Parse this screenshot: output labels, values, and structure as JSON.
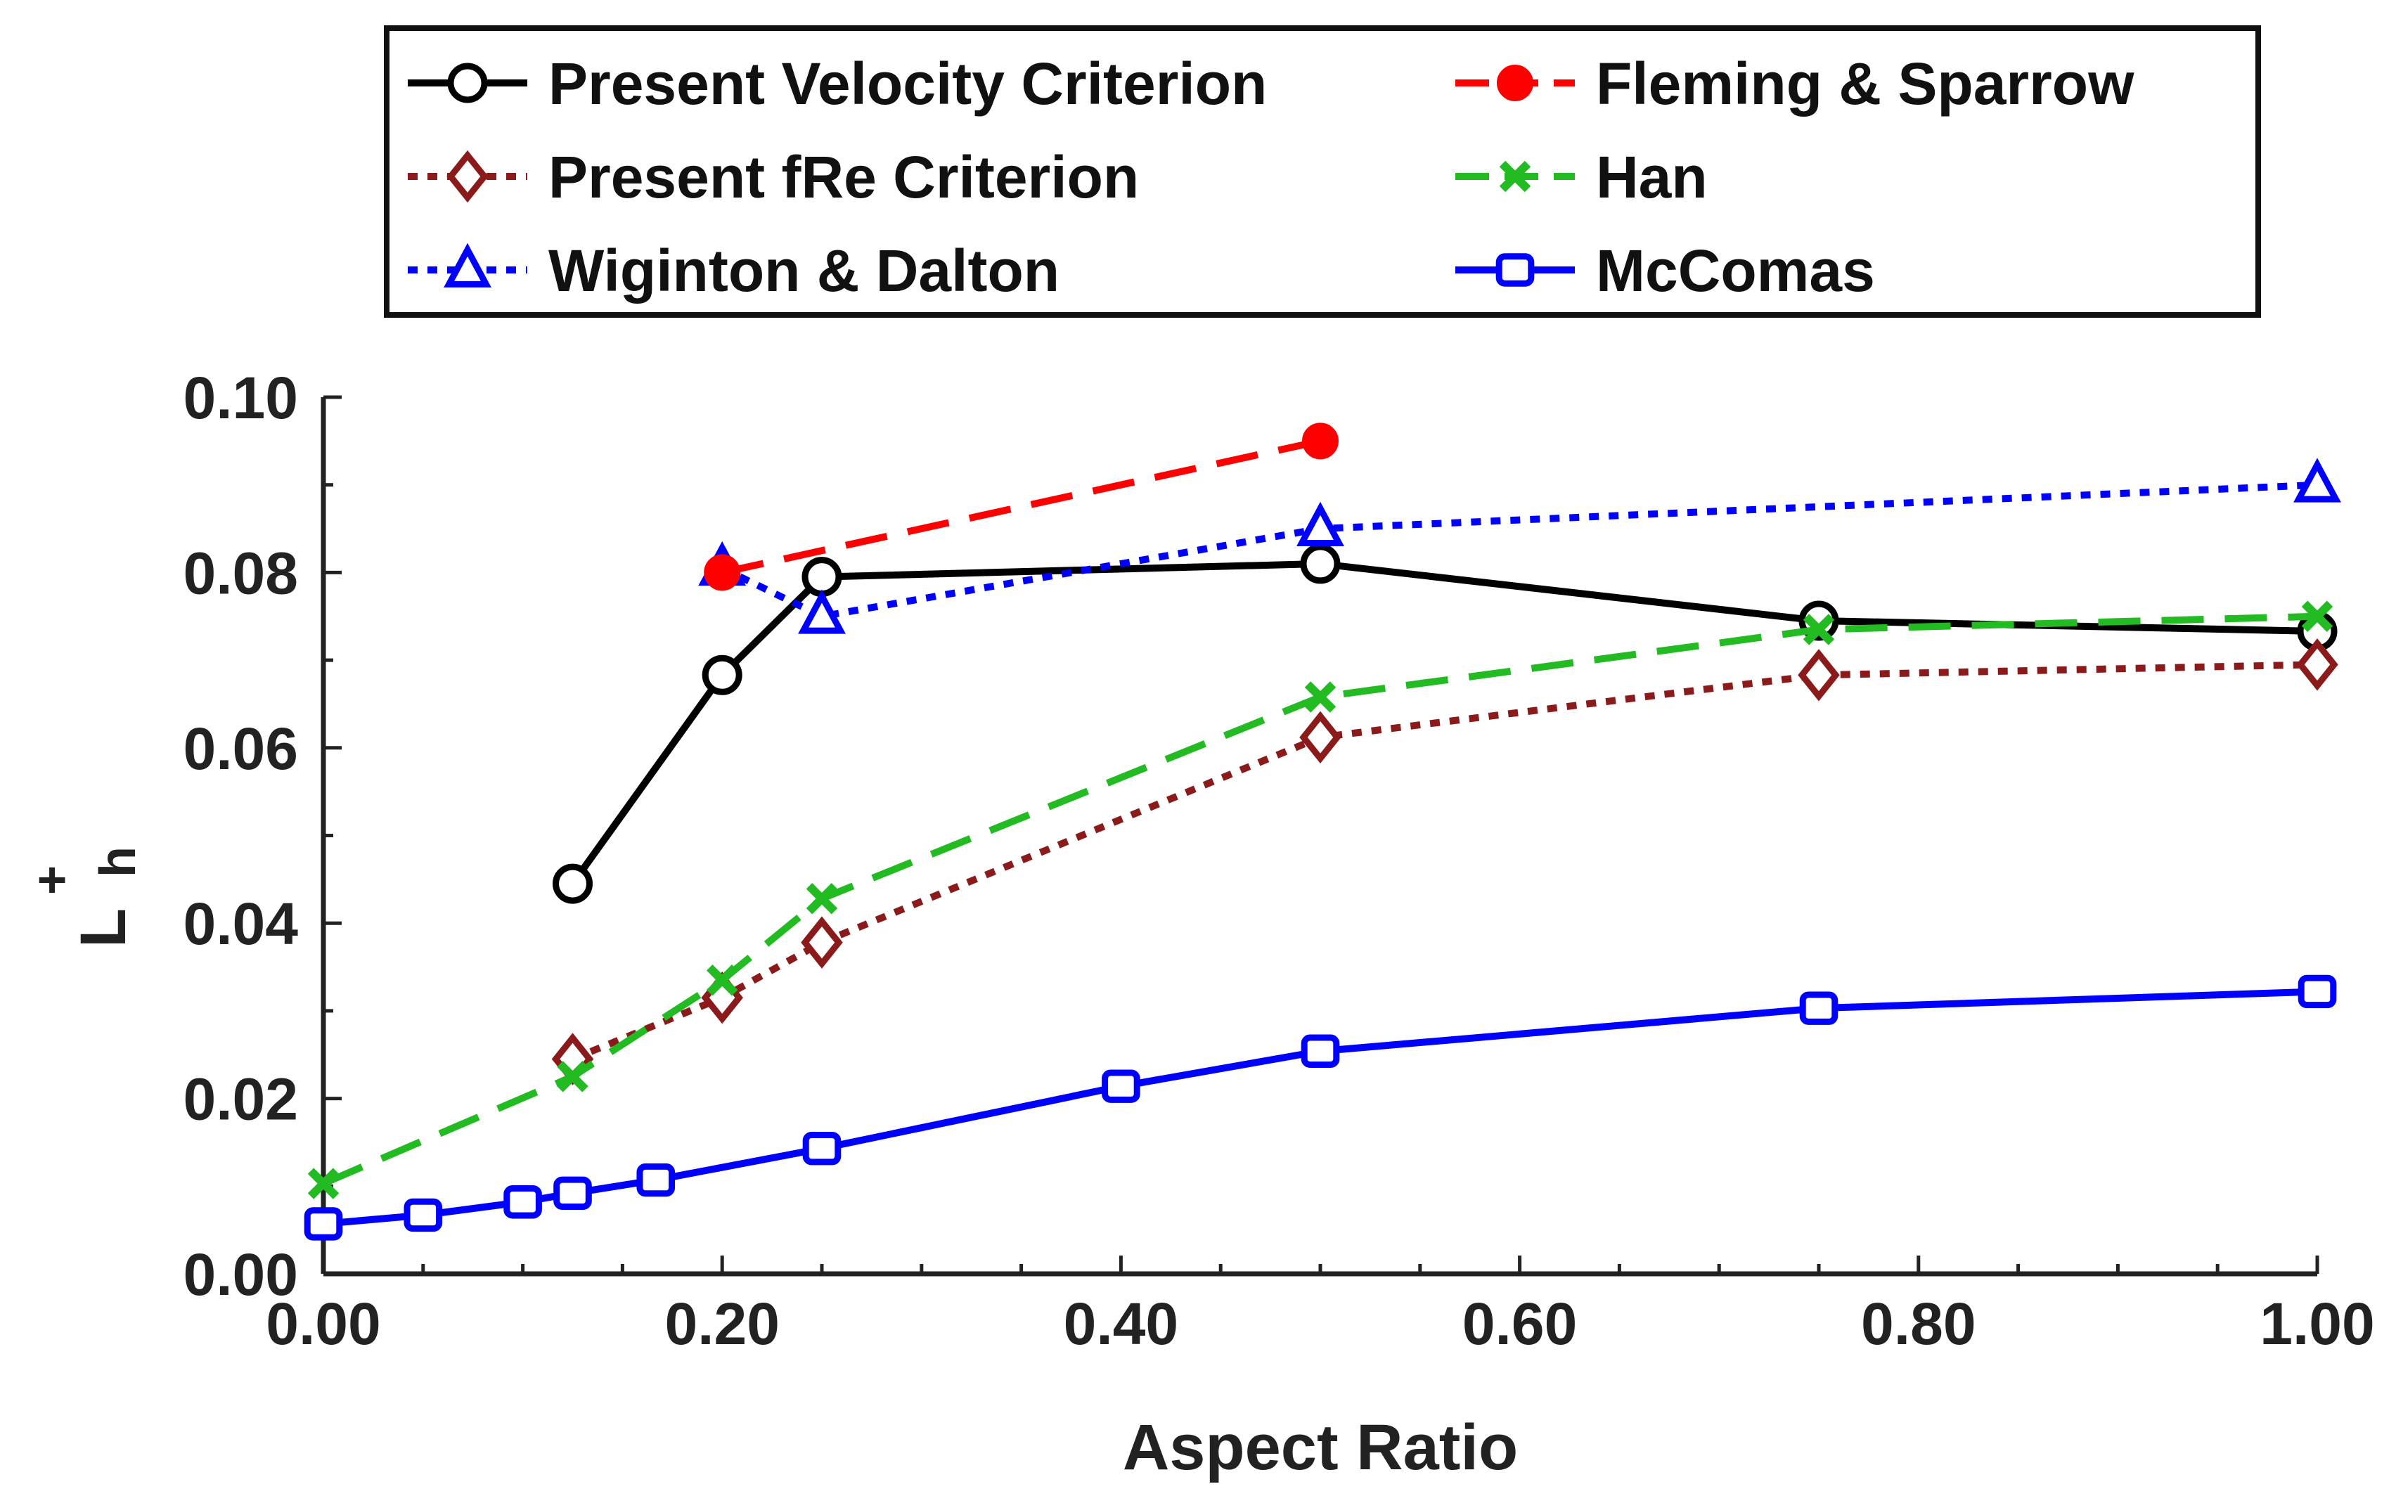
{
  "chart_data": {
    "type": "line",
    "title": "",
    "xlabel": "Aspect Ratio",
    "ylabel": {
      "base": "L",
      "superscript": "+",
      "subscript": "h"
    },
    "xlim": [
      0,
      1
    ],
    "ylim": [
      0,
      0.1
    ],
    "xticks": [
      "0.00",
      "0.20",
      "0.40",
      "0.60",
      "0.80",
      "1.00"
    ],
    "yticks": [
      "0.00",
      "0.02",
      "0.04",
      "0.06",
      "0.08",
      "0.10"
    ],
    "grid": false,
    "legend_position": "top",
    "series": [
      {
        "name": "Present Velocity Criterion",
        "color": "#000000",
        "dash": "solid",
        "marker": "circle-open",
        "x": [
          0.125,
          0.2,
          0.25,
          0.5,
          0.75,
          1.0
        ],
        "y": [
          0.0445,
          0.0683,
          0.0795,
          0.081,
          0.0745,
          0.0733
        ]
      },
      {
        "name": "Present fRe Criterion",
        "color": "#8b1a1a",
        "dash": "dotted",
        "marker": "diamond-open",
        "x": [
          0.125,
          0.2,
          0.25,
          0.5,
          0.75,
          1.0
        ],
        "y": [
          0.0245,
          0.0315,
          0.0378,
          0.0612,
          0.0683,
          0.0695
        ]
      },
      {
        "name": "Wiginton & Dalton",
        "color": "#0000ff",
        "dash": "dotted",
        "marker": "triangle-open",
        "x": [
          0.2,
          0.25,
          0.5,
          1.0
        ],
        "y": [
          0.0805,
          0.075,
          0.085,
          0.09
        ]
      },
      {
        "name": "Fleming & Sparrow",
        "color": "#ff0000",
        "dash": "dashed",
        "marker": "circle-filled",
        "x": [
          0.2,
          0.5
        ],
        "y": [
          0.08,
          0.095
        ]
      },
      {
        "name": "Han",
        "color": "#22bb22",
        "dash": "dashed",
        "marker": "x",
        "x": [
          0.0,
          0.125,
          0.2,
          0.25,
          0.5,
          0.75,
          1.0
        ],
        "y": [
          0.0103,
          0.0225,
          0.0335,
          0.0428,
          0.0658,
          0.0735,
          0.075
        ]
      },
      {
        "name": "McComas",
        "color": "#0000ff",
        "dash": "solid",
        "marker": "square-open",
        "x": [
          0.0,
          0.05,
          0.1,
          0.125,
          0.1667,
          0.25,
          0.4,
          0.5,
          0.75,
          1.0
        ],
        "y": [
          0.0057,
          0.0067,
          0.0082,
          0.0092,
          0.0107,
          0.0143,
          0.0214,
          0.0254,
          0.0303,
          0.0322
        ]
      }
    ]
  }
}
